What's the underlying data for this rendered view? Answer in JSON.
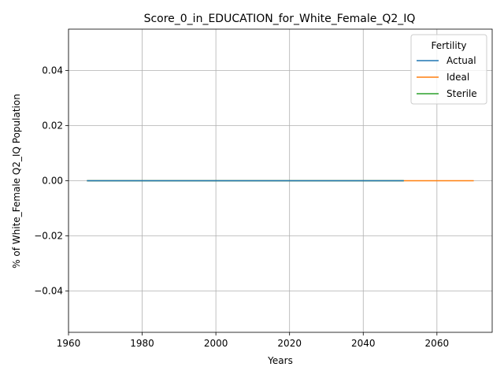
{
  "chart_data": {
    "type": "line",
    "title": "Score_0_in_EDUCATION_for_White_Female_Q2_IQ",
    "xlabel": "Years",
    "ylabel": "% of White_Female Q2_IQ Population",
    "xlim": [
      1960,
      2075
    ],
    "ylim": [
      -0.055,
      0.055
    ],
    "xticks": [
      1960,
      1980,
      2000,
      2020,
      2040,
      2060
    ],
    "yticks": [
      -0.04,
      -0.02,
      0.0,
      0.02,
      0.04
    ],
    "ytick_labels": [
      "−0.04",
      "−0.02",
      "0.00",
      "0.02",
      "0.04"
    ],
    "grid": true,
    "legend": {
      "title": "Fertility",
      "placement": "top-right"
    },
    "series": [
      {
        "name": "Actual",
        "color": "#1f77b4",
        "x": [
          1965,
          2051
        ],
        "y": [
          0,
          0
        ]
      },
      {
        "name": "Ideal",
        "color": "#ff7f0e",
        "x": [
          1965,
          2070
        ],
        "y": [
          0,
          0
        ]
      },
      {
        "name": "Sterile",
        "color": "#2ca02c",
        "x": [
          1965,
          2051
        ],
        "y": [
          0,
          0
        ]
      }
    ]
  }
}
